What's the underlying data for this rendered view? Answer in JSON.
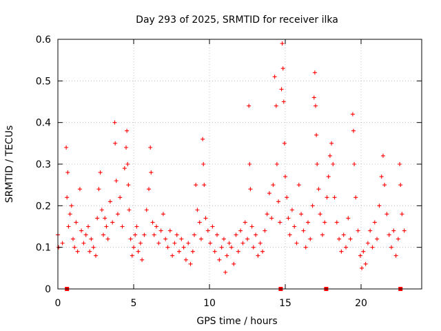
{
  "chart_data": {
    "type": "scatter",
    "title": "Day 293 of 2025, SRMTID for receiver ilka",
    "xlabel": "GPS time / hours",
    "ylabel": "SRMTID / TECUs",
    "xlim": [
      0,
      24
    ],
    "ylim": [
      0,
      0.6
    ],
    "xticks": [
      0,
      5,
      10,
      15,
      20
    ],
    "xtick_labels": [
      "0",
      "5",
      "10",
      "15",
      "20"
    ],
    "yticks": [
      0,
      0.1,
      0.2,
      0.3,
      0.4,
      0.5,
      0.6
    ],
    "ytick_labels": [
      "0",
      "0.1",
      "0.2",
      "0.3",
      "0.4",
      "0.5",
      "0.6"
    ],
    "grid": true,
    "marker": "plus",
    "series_color": "#ff0000",
    "gap_markers_x": [
      0.6,
      14.7,
      17.7,
      22.6
    ],
    "points": [
      [
        0.0,
        0.13
      ],
      [
        0.05,
        0.1
      ],
      [
        0.3,
        0.11
      ],
      [
        0.55,
        0.34
      ],
      [
        0.6,
        0.22
      ],
      [
        0.65,
        0.28
      ],
      [
        0.7,
        0.15
      ],
      [
        0.8,
        0.18
      ],
      [
        0.9,
        0.2
      ],
      [
        1.0,
        0.12
      ],
      [
        1.1,
        0.1
      ],
      [
        1.2,
        0.16
      ],
      [
        1.3,
        0.09
      ],
      [
        1.45,
        0.24
      ],
      [
        1.55,
        0.14
      ],
      [
        1.7,
        0.11
      ],
      [
        1.85,
        0.13
      ],
      [
        2.0,
        0.15
      ],
      [
        2.1,
        0.09
      ],
      [
        2.2,
        0.12
      ],
      [
        2.35,
        0.1
      ],
      [
        2.5,
        0.08
      ],
      [
        2.6,
        0.17
      ],
      [
        2.7,
        0.24
      ],
      [
        2.8,
        0.28
      ],
      [
        2.9,
        0.19
      ],
      [
        3.0,
        0.13
      ],
      [
        3.1,
        0.17
      ],
      [
        3.2,
        0.15
      ],
      [
        3.3,
        0.12
      ],
      [
        3.45,
        0.21
      ],
      [
        3.6,
        0.16
      ],
      [
        3.75,
        0.4
      ],
      [
        3.78,
        0.35
      ],
      [
        3.85,
        0.26
      ],
      [
        3.95,
        0.18
      ],
      [
        4.1,
        0.22
      ],
      [
        4.25,
        0.15
      ],
      [
        4.4,
        0.29
      ],
      [
        4.5,
        0.34
      ],
      [
        4.55,
        0.38
      ],
      [
        4.6,
        0.3
      ],
      [
        4.65,
        0.25
      ],
      [
        4.7,
        0.19
      ],
      [
        4.8,
        0.12
      ],
      [
        4.9,
        0.08
      ],
      [
        5.0,
        0.1
      ],
      [
        5.1,
        0.13
      ],
      [
        5.2,
        0.15
      ],
      [
        5.3,
        0.09
      ],
      [
        5.45,
        0.11
      ],
      [
        5.55,
        0.07
      ],
      [
        5.7,
        0.13
      ],
      [
        5.85,
        0.19
      ],
      [
        6.0,
        0.24
      ],
      [
        6.1,
        0.34
      ],
      [
        6.15,
        0.28
      ],
      [
        6.25,
        0.16
      ],
      [
        6.35,
        0.13
      ],
      [
        6.5,
        0.15
      ],
      [
        6.65,
        0.11
      ],
      [
        6.8,
        0.14
      ],
      [
        6.95,
        0.18
      ],
      [
        7.1,
        0.12
      ],
      [
        7.25,
        0.1
      ],
      [
        7.4,
        0.14
      ],
      [
        7.55,
        0.08
      ],
      [
        7.7,
        0.11
      ],
      [
        7.85,
        0.13
      ],
      [
        8.0,
        0.09
      ],
      [
        8.15,
        0.12
      ],
      [
        8.3,
        0.1
      ],
      [
        8.45,
        0.07
      ],
      [
        8.6,
        0.11
      ],
      [
        8.75,
        0.06
      ],
      [
        8.9,
        0.09
      ],
      [
        9.0,
        0.13
      ],
      [
        9.1,
        0.25
      ],
      [
        9.2,
        0.19
      ],
      [
        9.35,
        0.16
      ],
      [
        9.45,
        0.12
      ],
      [
        9.55,
        0.36
      ],
      [
        9.6,
        0.3
      ],
      [
        9.65,
        0.25
      ],
      [
        9.75,
        0.17
      ],
      [
        9.9,
        0.14
      ],
      [
        10.05,
        0.11
      ],
      [
        10.2,
        0.15
      ],
      [
        10.35,
        0.09
      ],
      [
        10.5,
        0.13
      ],
      [
        10.65,
        0.07
      ],
      [
        10.8,
        0.1
      ],
      [
        10.95,
        0.12
      ],
      [
        11.05,
        0.04
      ],
      [
        11.15,
        0.08
      ],
      [
        11.3,
        0.11
      ],
      [
        11.45,
        0.1
      ],
      [
        11.6,
        0.06
      ],
      [
        11.75,
        0.13
      ],
      [
        11.9,
        0.09
      ],
      [
        12.05,
        0.14
      ],
      [
        12.2,
        0.11
      ],
      [
        12.35,
        0.16
      ],
      [
        12.5,
        0.12
      ],
      [
        12.6,
        0.44
      ],
      [
        12.65,
        0.3
      ],
      [
        12.7,
        0.24
      ],
      [
        12.8,
        0.15
      ],
      [
        12.9,
        0.1
      ],
      [
        13.05,
        0.13
      ],
      [
        13.2,
        0.08
      ],
      [
        13.35,
        0.11
      ],
      [
        13.5,
        0.09
      ],
      [
        13.65,
        0.14
      ],
      [
        13.8,
        0.18
      ],
      [
        13.95,
        0.23
      ],
      [
        14.1,
        0.17
      ],
      [
        14.2,
        0.25
      ],
      [
        14.3,
        0.51
      ],
      [
        14.4,
        0.44
      ],
      [
        14.45,
        0.3
      ],
      [
        14.55,
        0.21
      ],
      [
        14.65,
        0.16
      ],
      [
        14.75,
        0.48
      ],
      [
        14.8,
        0.59
      ],
      [
        14.85,
        0.53
      ],
      [
        14.9,
        0.45
      ],
      [
        14.95,
        0.35
      ],
      [
        15.0,
        0.27
      ],
      [
        15.1,
        0.22
      ],
      [
        15.2,
        0.17
      ],
      [
        15.3,
        0.13
      ],
      [
        15.45,
        0.19
      ],
      [
        15.6,
        0.15
      ],
      [
        15.75,
        0.11
      ],
      [
        15.9,
        0.25
      ],
      [
        16.05,
        0.18
      ],
      [
        16.2,
        0.14
      ],
      [
        16.35,
        0.1
      ],
      [
        16.5,
        0.16
      ],
      [
        16.65,
        0.12
      ],
      [
        16.8,
        0.2
      ],
      [
        16.9,
        0.46
      ],
      [
        16.95,
        0.52
      ],
      [
        17.0,
        0.44
      ],
      [
        17.05,
        0.37
      ],
      [
        17.1,
        0.3
      ],
      [
        17.2,
        0.24
      ],
      [
        17.3,
        0.18
      ],
      [
        17.45,
        0.13
      ],
      [
        17.6,
        0.16
      ],
      [
        17.75,
        0.22
      ],
      [
        17.85,
        0.27
      ],
      [
        17.95,
        0.32
      ],
      [
        18.05,
        0.35
      ],
      [
        18.15,
        0.3
      ],
      [
        18.25,
        0.22
      ],
      [
        18.4,
        0.16
      ],
      [
        18.55,
        0.12
      ],
      [
        18.7,
        0.09
      ],
      [
        18.85,
        0.13
      ],
      [
        19.0,
        0.1
      ],
      [
        19.15,
        0.17
      ],
      [
        19.3,
        0.12
      ],
      [
        19.45,
        0.42
      ],
      [
        19.5,
        0.38
      ],
      [
        19.55,
        0.3
      ],
      [
        19.65,
        0.22
      ],
      [
        19.8,
        0.14
      ],
      [
        19.95,
        0.08
      ],
      [
        20.05,
        0.05
      ],
      [
        20.15,
        0.09
      ],
      [
        20.3,
        0.06
      ],
      [
        20.45,
        0.11
      ],
      [
        20.6,
        0.14
      ],
      [
        20.75,
        0.1
      ],
      [
        20.9,
        0.16
      ],
      [
        21.05,
        0.12
      ],
      [
        21.2,
        0.2
      ],
      [
        21.35,
        0.27
      ],
      [
        21.45,
        0.32
      ],
      [
        21.55,
        0.25
      ],
      [
        21.7,
        0.18
      ],
      [
        21.85,
        0.13
      ],
      [
        22.0,
        0.1
      ],
      [
        22.15,
        0.14
      ],
      [
        22.3,
        0.08
      ],
      [
        22.45,
        0.12
      ],
      [
        22.55,
        0.3
      ],
      [
        22.6,
        0.25
      ],
      [
        22.7,
        0.18
      ],
      [
        22.85,
        0.14
      ]
    ]
  }
}
